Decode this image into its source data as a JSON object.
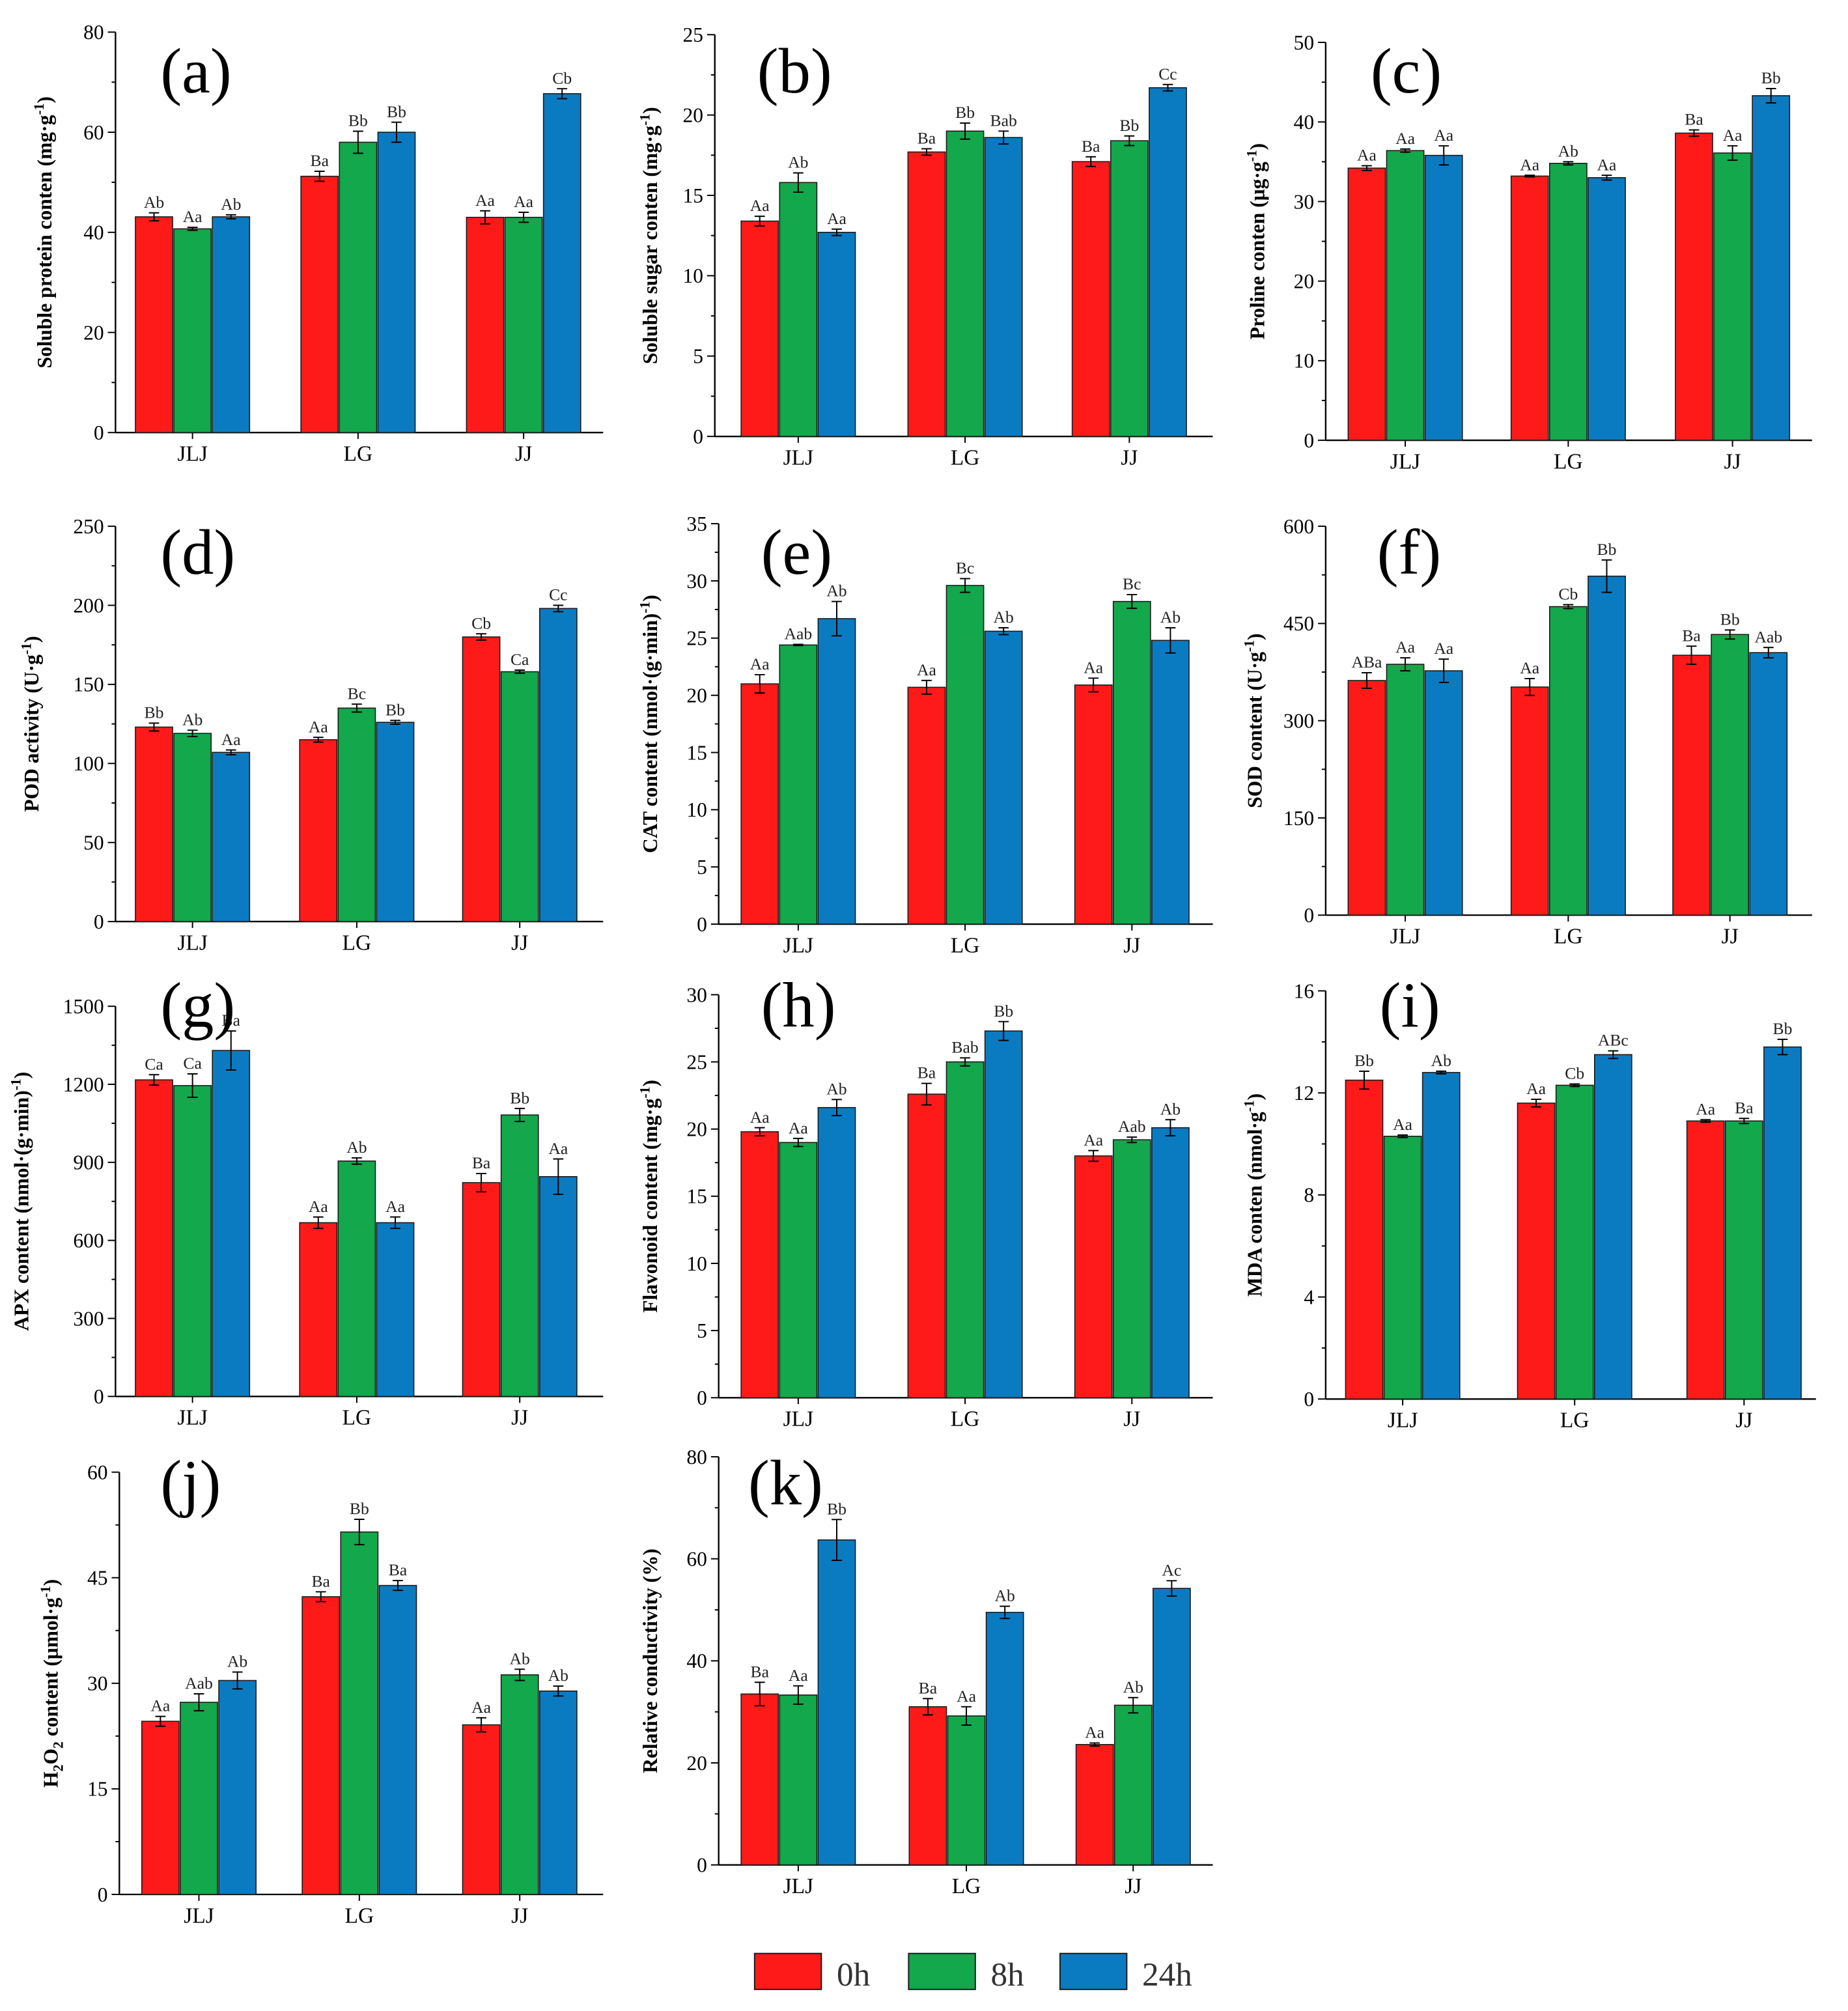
{
  "legend": [
    {
      "name": "0h",
      "color": "#FF1A1A"
    },
    {
      "name": "8h",
      "color": "#12A84B"
    },
    {
      "name": "24h",
      "color": "#0B7BC1"
    }
  ],
  "chart_data": [
    {
      "panel": "(a)",
      "type": "bar",
      "ylabel": [
        {
          "t": "Soluble protein conten (mg·g"
        },
        {
          "t": "-1",
          "sup": true
        },
        {
          "t": ")"
        }
      ],
      "categories": [
        "JLJ",
        "LG",
        "JJ"
      ],
      "ylim": [
        0,
        80
      ],
      "yticks": [
        0,
        20,
        40,
        60,
        80
      ],
      "series": [
        {
          "values": [
            43.1,
            51.2,
            43.0
          ],
          "errors": [
            0.8,
            1.0,
            1.3
          ],
          "labels": [
            "Ab",
            "Ba",
            "Aa"
          ]
        },
        {
          "values": [
            40.7,
            58.0,
            43.0
          ],
          "errors": [
            0.3,
            2.2,
            1.0
          ],
          "labels": [
            "Aa",
            "Bb",
            "Aa"
          ]
        },
        {
          "values": [
            43.1,
            60.0,
            67.7
          ],
          "errors": [
            0.4,
            2.0,
            1.0
          ],
          "labels": [
            "Ab",
            "Bb",
            "Cb"
          ]
        }
      ]
    },
    {
      "panel": "(b)",
      "type": "bar",
      "ylabel": [
        {
          "t": "Soluble sugar conten (mg·g"
        },
        {
          "t": "-1",
          "sup": true
        },
        {
          "t": ")"
        }
      ],
      "categories": [
        "JLJ",
        "LG",
        "JJ"
      ],
      "ylim": [
        0,
        25
      ],
      "yticks": [
        0,
        5,
        10,
        15,
        20,
        25
      ],
      "series": [
        {
          "values": [
            13.4,
            17.7,
            17.1
          ],
          "errors": [
            0.3,
            0.2,
            0.3
          ],
          "labels": [
            "Aa",
            "Ba",
            "Ba"
          ]
        },
        {
          "values": [
            15.8,
            19.0,
            18.4
          ],
          "errors": [
            0.6,
            0.5,
            0.3
          ],
          "labels": [
            "Ab",
            "Bb",
            "Bb"
          ]
        },
        {
          "values": [
            12.7,
            18.6,
            21.7
          ],
          "errors": [
            0.2,
            0.4,
            0.2
          ],
          "labels": [
            "Aa",
            "Bab",
            "Cc"
          ]
        }
      ]
    },
    {
      "panel": "(c)",
      "type": "bar",
      "ylabel": [
        {
          "t": "Proline conten (μg·g"
        },
        {
          "t": "-1",
          "sup": true
        },
        {
          "t": ")"
        }
      ],
      "categories": [
        "JLJ",
        "LG",
        "JJ"
      ],
      "ylim": [
        0,
        50
      ],
      "yticks": [
        0,
        10,
        20,
        30,
        40,
        50
      ],
      "series": [
        {
          "values": [
            34.2,
            33.2,
            38.6
          ],
          "errors": [
            0.3,
            0.1,
            0.4
          ],
          "labels": [
            "Aa",
            "Aa",
            "Ba"
          ]
        },
        {
          "values": [
            36.4,
            34.8,
            36.1
          ],
          "errors": [
            0.2,
            0.2,
            0.9
          ],
          "labels": [
            "Aa",
            "Ab",
            "Aa"
          ]
        },
        {
          "values": [
            35.8,
            33.0,
            43.3
          ],
          "errors": [
            1.2,
            0.3,
            0.9
          ],
          "labels": [
            "Aa",
            "Aa",
            "Bb"
          ]
        }
      ]
    },
    {
      "panel": "(d)",
      "type": "bar",
      "ylabel": [
        {
          "t": "POD activity (U·g"
        },
        {
          "t": "-1",
          "sup": true
        },
        {
          "t": ")"
        }
      ],
      "categories": [
        "JLJ",
        "LG",
        "JJ"
      ],
      "ylim": [
        0,
        250
      ],
      "yticks": [
        0,
        50,
        100,
        150,
        200,
        250
      ],
      "series": [
        {
          "values": [
            123,
            115,
            180
          ],
          "errors": [
            2.5,
            1.5,
            2
          ],
          "labels": [
            "Bb",
            "Aa",
            "Cb"
          ]
        },
        {
          "values": [
            119,
            135,
            158
          ],
          "errors": [
            2,
            2.5,
            1
          ],
          "labels": [
            "Ab",
            "Bc",
            "Ca"
          ]
        },
        {
          "values": [
            107,
            126,
            198
          ],
          "errors": [
            1.5,
            1.2,
            2
          ],
          "labels": [
            "Aa",
            "Bb",
            "Cc"
          ]
        }
      ]
    },
    {
      "panel": "(e)",
      "type": "bar",
      "ylabel": [
        {
          "t": "CAT content (nmol·(g·min)"
        },
        {
          "t": "-1",
          "sup": true
        },
        {
          "t": ")"
        }
      ],
      "categories": [
        "JLJ",
        "LG",
        "JJ"
      ],
      "ylim": [
        0,
        35
      ],
      "yticks": [
        0,
        5,
        10,
        15,
        20,
        25,
        30,
        35
      ],
      "series": [
        {
          "values": [
            21.0,
            20.7,
            20.9
          ],
          "errors": [
            0.8,
            0.6,
            0.6
          ],
          "labels": [
            "Aa",
            "Aa",
            "Aa"
          ]
        },
        {
          "values": [
            24.4,
            29.6,
            28.2
          ],
          "errors": [
            0.05,
            0.6,
            0.6
          ],
          "labels": [
            "Aab",
            "Bc",
            "Bc"
          ]
        },
        {
          "values": [
            26.7,
            25.6,
            24.8
          ],
          "errors": [
            1.5,
            0.3,
            1.1
          ],
          "labels": [
            "Ab",
            "Ab",
            "Ab"
          ]
        }
      ]
    },
    {
      "panel": "(f)",
      "type": "bar",
      "ylabel": [
        {
          "t": "SOD content (U·g"
        },
        {
          "t": "-1",
          "sup": true
        },
        {
          "t": ")"
        }
      ],
      "categories": [
        "JLJ",
        "LG",
        "JJ"
      ],
      "ylim": [
        0,
        600
      ],
      "yticks": [
        0,
        150,
        300,
        450,
        600
      ],
      "series": [
        {
          "values": [
            362,
            352,
            401
          ],
          "errors": [
            12,
            13,
            14
          ],
          "labels": [
            "ABa",
            "Aa",
            "Ba"
          ]
        },
        {
          "values": [
            387,
            476,
            433
          ],
          "errors": [
            10,
            3,
            7
          ],
          "labels": [
            "Aa",
            "Cb",
            "Bb"
          ]
        },
        {
          "values": [
            377,
            523,
            405
          ],
          "errors": [
            18,
            25,
            8
          ],
          "labels": [
            "Aa",
            "Bb",
            "Aab"
          ]
        }
      ]
    },
    {
      "panel": "(g)",
      "type": "bar",
      "ylabel": [
        {
          "t": "APX content (nmol·(g·min)"
        },
        {
          "t": "-1",
          "sup": true
        },
        {
          "t": ")"
        }
      ],
      "categories": [
        "JLJ",
        "LG",
        "JJ"
      ],
      "ylim": [
        0,
        1500
      ],
      "yticks": [
        0,
        300,
        600,
        900,
        1200,
        1500
      ],
      "series": [
        {
          "values": [
            1217,
            668,
            822
          ],
          "errors": [
            20,
            22,
            35
          ],
          "labels": [
            "Ca",
            "Aa",
            "Ba"
          ]
        },
        {
          "values": [
            1195,
            905,
            1082
          ],
          "errors": [
            45,
            12,
            25
          ],
          "labels": [
            "Ca",
            "Ab",
            "Bb"
          ]
        },
        {
          "values": [
            1330,
            668,
            845
          ],
          "errors": [
            75,
            22,
            68
          ],
          "labels": [
            "Ba",
            "Aa",
            "Aa"
          ]
        }
      ]
    },
    {
      "panel": "(h)",
      "type": "bar",
      "ylabel": [
        {
          "t": "Flavonoid content (mg·g"
        },
        {
          "t": "-1",
          "sup": true
        },
        {
          "t": ")"
        }
      ],
      "categories": [
        "JLJ",
        "LG",
        "JJ"
      ],
      "ylim": [
        0,
        30
      ],
      "yticks": [
        0,
        5,
        10,
        15,
        20,
        25,
        30
      ],
      "series": [
        {
          "values": [
            19.8,
            22.6,
            18.0
          ],
          "errors": [
            0.3,
            0.8,
            0.4
          ],
          "labels": [
            "Aa",
            "Ba",
            "Aa"
          ]
        },
        {
          "values": [
            19.0,
            25.0,
            19.2
          ],
          "errors": [
            0.3,
            0.3,
            0.2
          ],
          "labels": [
            "Aa",
            "Bab",
            "Aab"
          ]
        },
        {
          "values": [
            21.6,
            27.3,
            20.1
          ],
          "errors": [
            0.6,
            0.7,
            0.6
          ],
          "labels": [
            "Ab",
            "Bb",
            "Ab"
          ]
        }
      ]
    },
    {
      "panel": "(i)",
      "type": "bar",
      "ylabel": [
        {
          "t": "MDA conten (nmol·g"
        },
        {
          "t": "-1",
          "sup": true
        },
        {
          "t": ")"
        }
      ],
      "categories": [
        "JLJ",
        "LG",
        "JJ"
      ],
      "ylim": [
        0,
        16
      ],
      "yticks": [
        0,
        4,
        8,
        12,
        16
      ],
      "series": [
        {
          "values": [
            12.5,
            11.6,
            10.9
          ],
          "errors": [
            0.35,
            0.15,
            0.05
          ],
          "labels": [
            "Bb",
            "Aa",
            "Aa"
          ]
        },
        {
          "values": [
            10.3,
            12.3,
            10.9
          ],
          "errors": [
            0.05,
            0.05,
            0.1
          ],
          "labels": [
            "Aa",
            "Cb",
            "Ba"
          ]
        },
        {
          "values": [
            12.8,
            13.5,
            13.8
          ],
          "errors": [
            0.05,
            0.15,
            0.3
          ],
          "labels": [
            "Ab",
            "ABc",
            "Bb"
          ]
        }
      ]
    },
    {
      "panel": "(j)",
      "type": "bar",
      "ylabel": [
        {
          "t": "H"
        },
        {
          "t": "2",
          "sub": true
        },
        {
          "t": "O"
        },
        {
          "t": "2",
          "sub": true
        },
        {
          "t": " content (μmol·g"
        },
        {
          "t": "-1",
          "sup": true
        },
        {
          "t": ")"
        }
      ],
      "categories": [
        "JLJ",
        "LG",
        "JJ"
      ],
      "ylim": [
        0,
        60
      ],
      "yticks": [
        0,
        15,
        30,
        45,
        60
      ],
      "series": [
        {
          "values": [
            24.6,
            42.3,
            24.1
          ],
          "errors": [
            0.7,
            0.7,
            1.0
          ],
          "labels": [
            "Aa",
            "Ba",
            "Aa"
          ]
        },
        {
          "values": [
            27.3,
            51.5,
            31.2
          ],
          "errors": [
            1.2,
            1.8,
            0.8
          ],
          "labels": [
            "Aab",
            "Bb",
            "Ab"
          ]
        },
        {
          "values": [
            30.4,
            43.9,
            28.9
          ],
          "errors": [
            1.2,
            0.7,
            0.7
          ],
          "labels": [
            "Ab",
            "Ba",
            "Ab"
          ]
        }
      ]
    },
    {
      "panel": "(k)",
      "type": "bar",
      "ylabel": [
        {
          "t": "Relative conductivity (%)"
        }
      ],
      "categories": [
        "JLJ",
        "LG",
        "JJ"
      ],
      "ylim": [
        0,
        80
      ],
      "yticks": [
        0,
        20,
        40,
        60,
        80
      ],
      "series": [
        {
          "values": [
            33.5,
            31.0,
            23.6
          ],
          "errors": [
            2.3,
            1.6,
            0.3
          ],
          "labels": [
            "Ba",
            "Ba",
            "Aa"
          ]
        },
        {
          "values": [
            33.3,
            29.2,
            31.3
          ],
          "errors": [
            1.8,
            1.8,
            1.5
          ],
          "labels": [
            "Aa",
            "Aa",
            "Ab"
          ]
        },
        {
          "values": [
            63.7,
            49.5,
            54.2
          ],
          "errors": [
            4.0,
            1.2,
            1.5
          ],
          "labels": [
            "Bb",
            "Ab",
            "Ac"
          ]
        }
      ]
    }
  ]
}
